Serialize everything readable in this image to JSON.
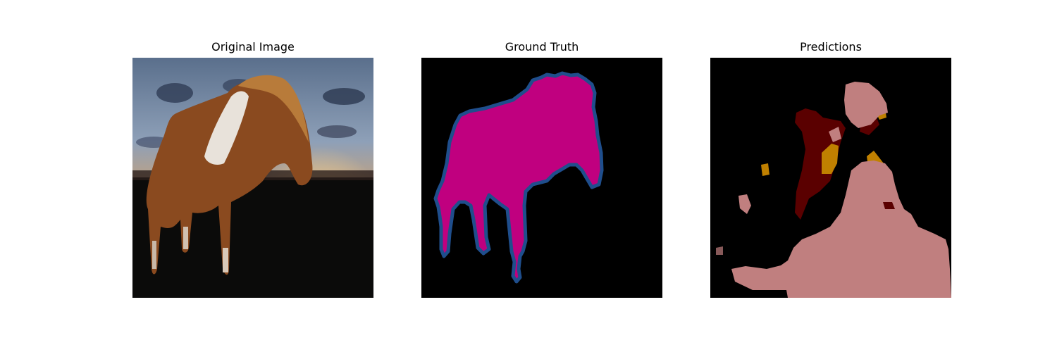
{
  "figure": {
    "panels": [
      {
        "title": "Original Image"
      },
      {
        "title": "Ground Truth"
      },
      {
        "title": "Predictions"
      }
    ]
  },
  "colors": {
    "background_mask": "#000000",
    "gt_horse": "#c0007f",
    "gt_boundary": "#1f4e8c",
    "pred_class_a": "#c07f7f",
    "pred_class_b": "#5a0000",
    "pred_class_c": "#c08000"
  }
}
